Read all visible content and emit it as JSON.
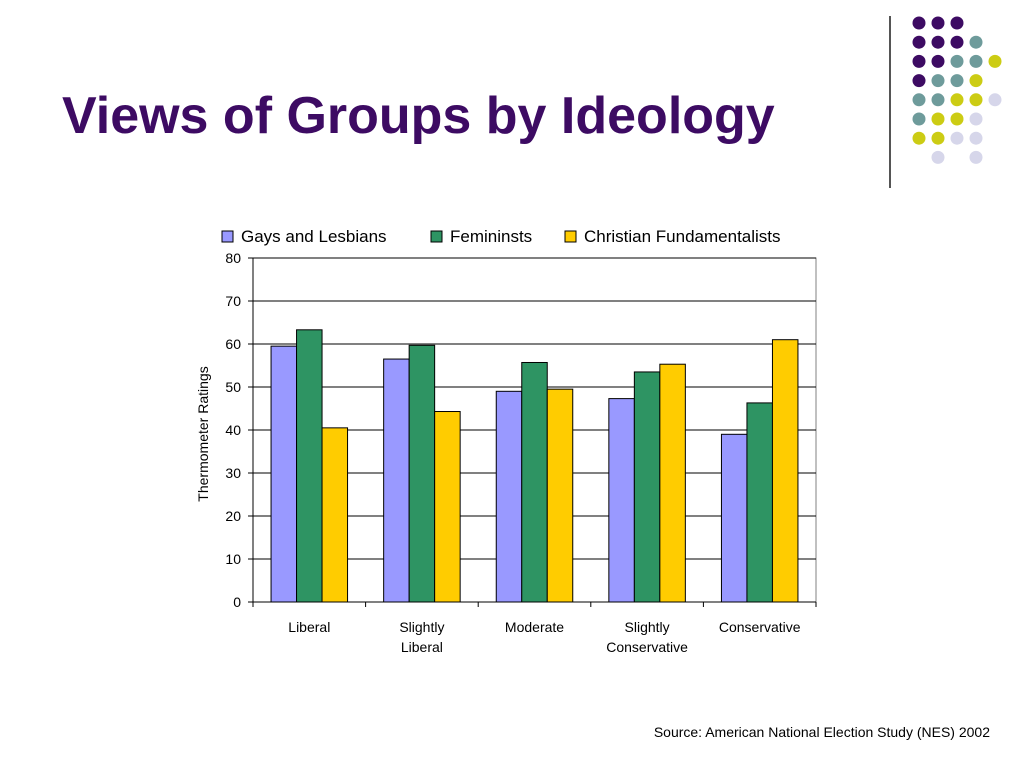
{
  "slide": {
    "title": "Views of Groups by Ideology",
    "source": "Source: American National Election Study (NES) 2002"
  },
  "decoration": {
    "dot_grid": [
      [
        "purple",
        "purple",
        "purple",
        "",
        ""
      ],
      [
        "purple",
        "purple",
        "purple",
        "teal",
        ""
      ],
      [
        "purple",
        "purple",
        "teal",
        "teal",
        "yellow"
      ],
      [
        "purple",
        "teal",
        "teal",
        "yellow",
        ""
      ],
      [
        "teal",
        "teal",
        "yellow",
        "yellow",
        "lavender"
      ],
      [
        "teal",
        "yellow",
        "yellow",
        "lavender",
        ""
      ],
      [
        "yellow",
        "yellow",
        "lavender",
        "lavender",
        ""
      ],
      [
        "",
        "lavender",
        "",
        "lavender",
        ""
      ]
    ],
    "dot_colors": {
      "purple": "#3d0b63",
      "teal": "#6e9b9b",
      "yellow": "#cccc14",
      "lavender": "#d6d6ea"
    }
  },
  "chart_data": {
    "type": "bar",
    "categories": [
      [
        "Liberal"
      ],
      [
        "Slightly",
        "Liberal"
      ],
      [
        "Moderate"
      ],
      [
        "Slightly",
        "Conservative"
      ],
      [
        "Conservative"
      ]
    ],
    "series": [
      {
        "name": "Gays and Lesbians",
        "color": "#9999ff",
        "values": [
          59.5,
          56.5,
          49,
          47.3,
          39
        ]
      },
      {
        "name": "Femininsts",
        "color": "#2e9463",
        "values": [
          63.3,
          59.7,
          55.7,
          53.5,
          46.3
        ]
      },
      {
        "name": "Christian Fundamentalists",
        "color": "#ffcc00",
        "values": [
          40.5,
          44.3,
          49.5,
          55.3,
          61
        ]
      }
    ],
    "ylabel": "Thermometer Ratings",
    "ylim": [
      0,
      80
    ],
    "yticks": [
      "0",
      "10",
      "20",
      "30",
      "40",
      "50",
      "60",
      "70",
      "80"
    ],
    "grid": true,
    "legend": "top"
  }
}
